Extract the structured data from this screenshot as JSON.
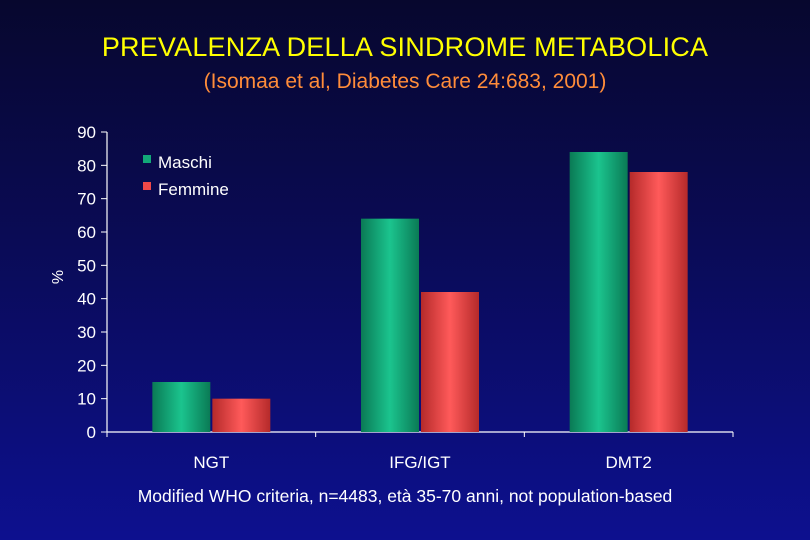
{
  "title": "PREVALENZA DELLA SINDROME METABOLICA",
  "subtitle": "(Isomaa et al, Diabetes Care 24:683, 2001)",
  "footnote": "Modified WHO criteria, n=4483, età 35-70 anni, not population-based",
  "colors": {
    "title": "#ffff00",
    "subtitle": "#ff8c3a",
    "maschi": "#12a878",
    "femmine": "#f04848"
  },
  "chart_data": {
    "type": "bar",
    "categories": [
      "NGT",
      "IFG/IGT",
      "DMT2"
    ],
    "series": [
      {
        "name": "Maschi",
        "values": [
          15,
          64,
          84
        ]
      },
      {
        "name": "Femmine",
        "values": [
          10,
          42,
          78
        ]
      }
    ],
    "ylabel": "%",
    "ylim": [
      0,
      90
    ],
    "yticks": [
      0,
      10,
      20,
      30,
      40,
      50,
      60,
      70,
      80,
      90
    ],
    "legend_position": "top-left",
    "grid": false
  }
}
